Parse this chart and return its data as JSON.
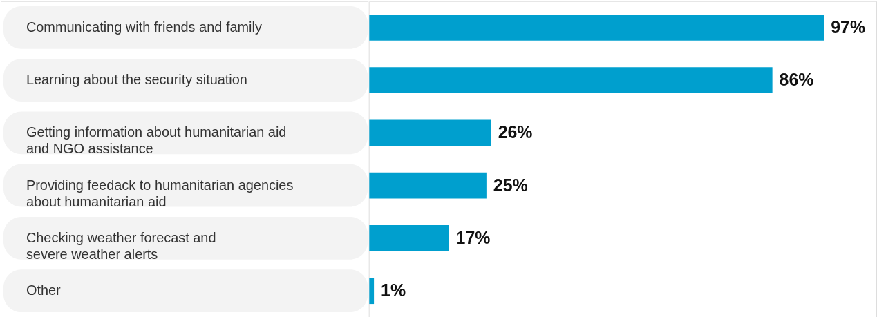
{
  "chart_data": {
    "type": "bar",
    "orientation": "horizontal",
    "color": "#009fce",
    "categories": [
      "Communicating with friends and family",
      "Learning about the security situation",
      "Getting information about humanitarian aid\nand NGO assistance",
      "Providing feedack to humanitarian agencies\nabout humanitarian aid",
      "Checking weather forecast and\nsevere weather alerts",
      "Other"
    ],
    "values": [
      97,
      86,
      26,
      25,
      17,
      1
    ],
    "value_labels": [
      "97%",
      "86%",
      "26%",
      "25%",
      "17%",
      "1%"
    ]
  }
}
